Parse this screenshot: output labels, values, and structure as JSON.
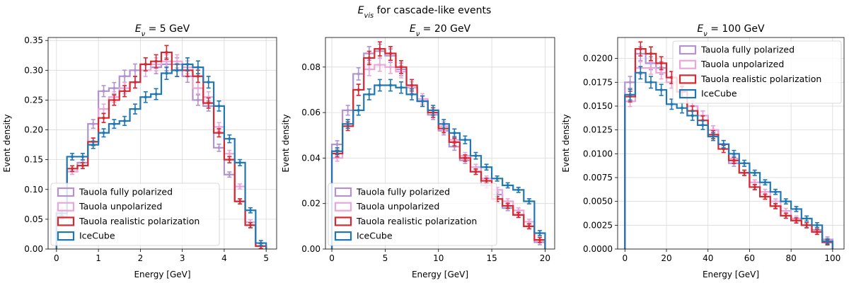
{
  "figure": {
    "suptitle": "E_vis for cascade-like events"
  },
  "colors": {
    "polarized": "#b292cf",
    "unpolarized": "#eaa6db",
    "realistic": "#d62830",
    "icecube": "#1f77b4"
  },
  "chart_data": [
    {
      "type": "line",
      "drawstyle": "steps-with-errorbars",
      "title": "E_ν = 5 GeV",
      "xlabel": "Energy [GeV]",
      "ylabel": "Event density",
      "xlim": [
        -0.2,
        5.25
      ],
      "ylim": [
        0,
        0.355
      ],
      "xticks": [
        "0",
        "1",
        "2",
        "3",
        "4",
        "5"
      ],
      "yticks": [
        "0.00",
        "0.05",
        "0.10",
        "0.15",
        "0.20",
        "0.25",
        "0.30",
        "0.35"
      ],
      "grid": true,
      "legend": "lower-left",
      "bin_edges": [
        0,
        0.25,
        0.5,
        0.75,
        1.0,
        1.25,
        1.5,
        1.75,
        2.0,
        2.25,
        2.5,
        2.75,
        3.0,
        3.25,
        3.5,
        3.75,
        4.0,
        4.25,
        4.5,
        4.75,
        5.0
      ],
      "series": [
        {
          "name": "Tauola fully polarized",
          "color_key": "polarized",
          "values": [
            0.055,
            0.13,
            0.145,
            0.21,
            0.265,
            0.27,
            0.29,
            0.3,
            0.31,
            0.305,
            0.31,
            0.31,
            0.29,
            0.25,
            0.24,
            0.17,
            0.125,
            0.08,
            0.04,
            0.005
          ]
        },
        {
          "name": "Tauola unpolarized",
          "color_key": "unpolarized",
          "values": [
            0.065,
            0.13,
            0.14,
            0.18,
            0.235,
            0.255,
            0.27,
            0.28,
            0.3,
            0.31,
            0.315,
            0.315,
            0.305,
            0.27,
            0.255,
            0.205,
            0.16,
            0.105,
            0.045,
            0.005
          ]
        },
        {
          "name": "Tauola realistic polarization",
          "color_key": "realistic",
          "values": [
            0.06,
            0.135,
            0.14,
            0.18,
            0.22,
            0.25,
            0.265,
            0.28,
            0.31,
            0.315,
            0.33,
            0.3,
            0.3,
            0.29,
            0.245,
            0.195,
            0.15,
            0.08,
            0.04,
            0.005
          ]
        },
        {
          "name": "IceCube",
          "color_key": "icecube",
          "values": [
            0.06,
            0.155,
            0.155,
            0.175,
            0.195,
            0.21,
            0.215,
            0.235,
            0.255,
            0.26,
            0.295,
            0.3,
            0.31,
            0.305,
            0.28,
            0.24,
            0.185,
            0.145,
            0.065,
            0.01
          ]
        }
      ]
    },
    {
      "type": "line",
      "drawstyle": "steps-with-errorbars",
      "title": "E_ν = 20 GeV",
      "xlabel": "Energy [GeV]",
      "ylabel": "Event density",
      "xlim": [
        -0.6,
        20.9
      ],
      "ylim": [
        0,
        0.093
      ],
      "xticks": [
        "0",
        "5",
        "10",
        "15",
        "20"
      ],
      "yticks": [
        "0.00",
        "0.02",
        "0.04",
        "0.06",
        "0.08"
      ],
      "grid": true,
      "legend": "lower-left",
      "bin_edges": [
        0,
        1,
        2,
        3,
        4,
        5,
        6,
        7,
        8,
        9,
        10,
        11,
        12,
        13,
        14,
        15,
        16,
        17,
        18,
        19,
        20
      ],
      "series": [
        {
          "name": "Tauola fully polarized",
          "color_key": "polarized",
          "values": [
            0.046,
            0.061,
            0.077,
            0.086,
            0.087,
            0.085,
            0.079,
            0.071,
            0.065,
            0.059,
            0.052,
            0.045,
            0.039,
            0.034,
            0.028,
            0.024,
            0.018,
            0.015,
            0.01,
            0.003
          ]
        },
        {
          "name": "Tauola unpolarized",
          "color_key": "unpolarized",
          "values": [
            0.04,
            0.055,
            0.07,
            0.079,
            0.081,
            0.08,
            0.078,
            0.071,
            0.066,
            0.06,
            0.054,
            0.048,
            0.041,
            0.036,
            0.031,
            0.026,
            0.021,
            0.017,
            0.012,
            0.004
          ]
        },
        {
          "name": "Tauola realistic polarization",
          "color_key": "realistic",
          "values": [
            0.042,
            0.054,
            0.07,
            0.084,
            0.088,
            0.086,
            0.08,
            0.072,
            0.065,
            0.06,
            0.053,
            0.047,
            0.04,
            0.034,
            0.03,
            0.022,
            0.019,
            0.015,
            0.01,
            0.004
          ]
        },
        {
          "name": "IceCube",
          "color_key": "icecube",
          "values": [
            0.043,
            0.055,
            0.061,
            0.068,
            0.072,
            0.072,
            0.071,
            0.068,
            0.065,
            0.061,
            0.055,
            0.051,
            0.048,
            0.041,
            0.036,
            0.031,
            0.028,
            0.026,
            0.021,
            0.007
          ]
        }
      ]
    },
    {
      "type": "line",
      "drawstyle": "steps-with-errorbars",
      "title": "E_ν = 100 GeV",
      "xlabel": "Energy [GeV]",
      "ylabel": "Event density",
      "xlim": [
        -3.5,
        105.5
      ],
      "ylim": [
        0,
        0.0222
      ],
      "xticks": [
        "0",
        "20",
        "40",
        "60",
        "80",
        "100"
      ],
      "yticks": [
        "0.0000",
        "0.0025",
        "0.0050",
        "0.0075",
        "0.0100",
        "0.0125",
        "0.0150",
        "0.0175",
        "0.0200"
      ],
      "grid": true,
      "legend": "upper-right",
      "bin_edges": [
        0,
        5,
        10,
        15,
        20,
        25,
        30,
        35,
        40,
        45,
        50,
        55,
        60,
        65,
        70,
        75,
        80,
        85,
        90,
        95,
        100
      ],
      "series": [
        {
          "name": "Tauola fully polarized",
          "color_key": "polarized",
          "values": [
            0.0175,
            0.0205,
            0.0195,
            0.019,
            0.018,
            0.0165,
            0.015,
            0.014,
            0.0125,
            0.011,
            0.009,
            0.008,
            0.0065,
            0.0055,
            0.0045,
            0.0035,
            0.003,
            0.0025,
            0.002,
            0.001
          ]
        },
        {
          "name": "Tauola unpolarized",
          "color_key": "unpolarized",
          "values": [
            0.0155,
            0.019,
            0.019,
            0.0185,
            0.0175,
            0.0165,
            0.015,
            0.014,
            0.0125,
            0.011,
            0.0095,
            0.008,
            0.007,
            0.006,
            0.005,
            0.004,
            0.0032,
            0.0025,
            0.0018,
            0.0008
          ]
        },
        {
          "name": "Tauola realistic polarization",
          "color_key": "realistic",
          "values": [
            0.016,
            0.021,
            0.0205,
            0.0195,
            0.018,
            0.0165,
            0.0145,
            0.0135,
            0.012,
            0.0105,
            0.0093,
            0.008,
            0.0065,
            0.0055,
            0.0045,
            0.0035,
            0.003,
            0.0025,
            0.0018,
            0.0007
          ]
        },
        {
          "name": "IceCube",
          "color_key": "icecube",
          "values": [
            0.0162,
            0.0185,
            0.0175,
            0.0167,
            0.0152,
            0.0148,
            0.014,
            0.013,
            0.0118,
            0.011,
            0.01,
            0.009,
            0.008,
            0.007,
            0.006,
            0.005,
            0.0042,
            0.0032,
            0.0025,
            0.0008
          ]
        }
      ]
    }
  ]
}
